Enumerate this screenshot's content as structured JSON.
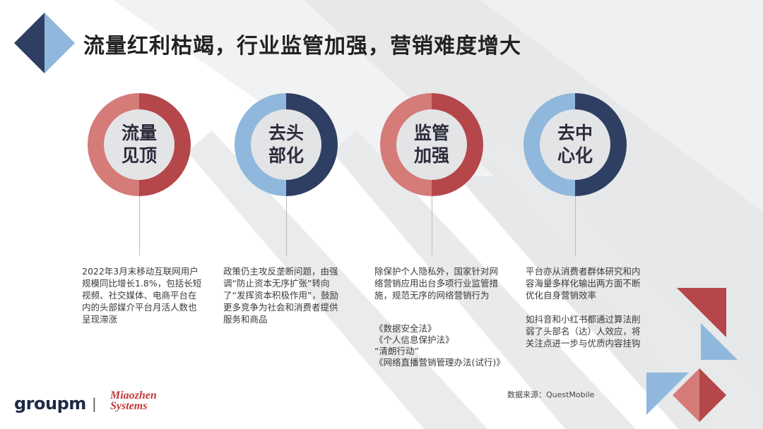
{
  "title": "流量红利枯竭，行业监管加强，营销难度增大",
  "colors": {
    "red": "#b5474b",
    "light_red": "#d57b78",
    "navy": "#2f3f63",
    "light_blue": "#8fb8dc",
    "gray_band": "#e3e5e8"
  },
  "items": [
    {
      "label": "流量见顶",
      "description": "2022年3月末移动互联网用户规模同比增长1.8%，包括长短视频、社交媒体、电商平台在内的头部媒介平台月活人数也呈现滞涨"
    },
    {
      "label": "去头部化",
      "description": "政策仍主攻反垄断问题，由强调“防止资本无序扩张”转向了“发挥资本积极作用”，鼓励更多竞争为社会和消费者提供服务和商品"
    },
    {
      "label": "监管加强",
      "description": "除保护个人隐私外，国家针对网络营销应用出台多项行业监管措施，规范无序的网络营销行为",
      "laws": [
        "《数据安全法》",
        "《个人信息保护法》",
        "“清朗行动”",
        "《网络直播营销管理办法(试行)》"
      ]
    },
    {
      "label": "去中心化",
      "description": "平台亦从消费者群体研究和内容海量多样化输出两方面不断优化自身营销效率",
      "description2": "如抖音和小红书都通过算法削弱了头部名（达）人效应，将关注点进一步与优质内容挂钩"
    }
  ],
  "source": "数据来源：QuestMobile",
  "logos": {
    "groupm": "groupm",
    "separator": "|",
    "miaozhen": "Miaozhen Systems"
  }
}
